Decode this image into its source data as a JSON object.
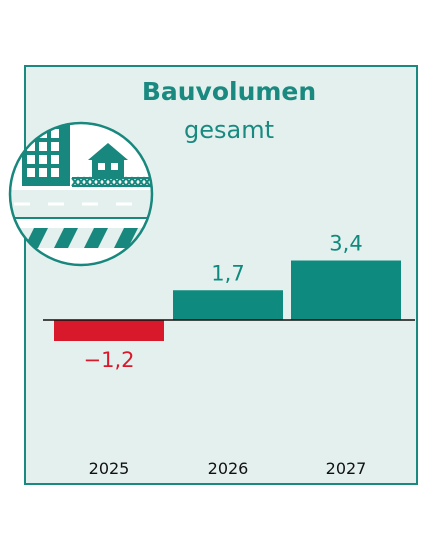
{
  "colors": {
    "positive": "#0f8a7e",
    "negative": "#d8192b",
    "frame": "#1a8a80",
    "background": "#e4f0ee",
    "icon": "#18877d"
  },
  "icon": "construction-building-icon",
  "chart_data": {
    "type": "bar",
    "title": "Bauvolumen",
    "subtitle": "gesamt",
    "categories": [
      "2025",
      "2026",
      "2027"
    ],
    "values": [
      -1.2,
      1.7,
      3.4
    ],
    "data_labels": [
      "−1,2",
      "1,7",
      "3,4"
    ],
    "grid": false,
    "legend": "none"
  }
}
